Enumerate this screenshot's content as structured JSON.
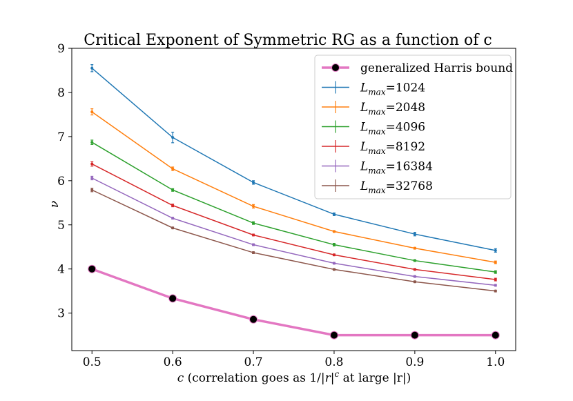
{
  "chart_data": {
    "type": "line",
    "title": "Critical Exponent of Symmetric RG as a function of c",
    "xlabel": "c (correlation goes as 1/|r|^c at large |r|)",
    "xlabel_parts": {
      "c_symbol": "c",
      "middle": " (correlation goes as 1/|",
      "r1": "r",
      "bar": "|",
      "exp": "c",
      "end": " at large |r|)"
    },
    "ylabel": "ν",
    "xlim": [
      0.475,
      1.025
    ],
    "ylim": [
      2.15,
      9.0
    ],
    "xticks": [
      "0.5",
      "0.6",
      "0.7",
      "0.8",
      "0.9",
      "1.0"
    ],
    "xtick_values": [
      0.5,
      0.6,
      0.7,
      0.8,
      0.9,
      1.0
    ],
    "yticks": [
      "3",
      "4",
      "5",
      "6",
      "7",
      "8",
      "9"
    ],
    "ytick_values": [
      3,
      4,
      5,
      6,
      7,
      8,
      9
    ],
    "x": [
      0.5,
      0.6,
      0.7,
      0.8,
      0.9,
      1.0
    ],
    "harris": {
      "name": "generalized Harris bound",
      "color": "#e377c2",
      "marker_color": "#000000",
      "values": [
        4.0,
        3.333,
        2.857,
        2.5,
        2.5,
        2.5
      ]
    },
    "series": [
      {
        "name": "L_max=1024",
        "name_sub": "max",
        "name_val": "=1024",
        "color": "#1f77b4",
        "values": [
          8.55,
          6.98,
          5.96,
          5.24,
          4.79,
          4.42
        ],
        "errors": [
          0.08,
          0.12,
          0.04,
          0.03,
          0.04,
          0.04
        ]
      },
      {
        "name": "L_max=2048",
        "name_sub": "max",
        "name_val": "=2048",
        "color": "#ff7f0e",
        "values": [
          7.56,
          6.27,
          5.42,
          4.85,
          4.47,
          4.15
        ],
        "errors": [
          0.07,
          0.04,
          0.04,
          0.02,
          0.02,
          0.03
        ]
      },
      {
        "name": "L_max=4096",
        "name_sub": "max",
        "name_val": "=4096",
        "color": "#2ca02c",
        "values": [
          6.87,
          5.79,
          5.04,
          4.55,
          4.19,
          3.93
        ],
        "errors": [
          0.05,
          0.03,
          0.03,
          0.03,
          0.02,
          0.03
        ]
      },
      {
        "name": "L_max=8192",
        "name_sub": "max",
        "name_val": "=8192",
        "color": "#d62728",
        "values": [
          6.38,
          5.44,
          4.77,
          4.32,
          3.99,
          3.76
        ],
        "errors": [
          0.05,
          0.03,
          0.02,
          0.02,
          0.02,
          0.03
        ]
      },
      {
        "name": "L_max=16384",
        "name_sub": "max",
        "name_val": "=16384",
        "color": "#9467bd",
        "values": [
          6.06,
          5.15,
          4.55,
          4.13,
          3.83,
          3.63
        ],
        "errors": [
          0.04,
          0.02,
          0.02,
          0.02,
          0.02,
          0.02
        ]
      },
      {
        "name": "L_max=32768",
        "name_sub": "max",
        "name_val": "=32768",
        "color": "#8c564b",
        "values": [
          5.79,
          4.93,
          4.37,
          3.99,
          3.71,
          3.5
        ],
        "errors": [
          0.04,
          0.02,
          0.02,
          0.02,
          0.02,
          0.02
        ]
      }
    ],
    "legend_position": "top-right",
    "grid": false
  }
}
